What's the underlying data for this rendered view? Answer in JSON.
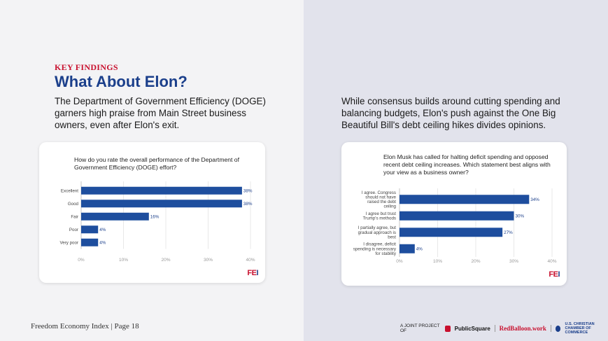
{
  "page": {
    "eyebrow": "KEY FINDINGS",
    "title": "What About Elon?",
    "left_text": "The Department of Government Efficiency (DOGE) garners high praise from Main Street business owners, even after Elon's exit.",
    "right_text": "While consensus builds around cutting spending and balancing budgets, Elon's push against the One Big Beautiful Bill's debt ceiling hikes divides opinions.",
    "logo_left": "FE",
    "logo_right": "I"
  },
  "footer": {
    "page_label": "Freedom Economy Index | Page 18",
    "joint_label": "A JOINT PROJECT OF",
    "brand1": "PublicSquare",
    "brand2": "RedBalloon.work",
    "brand3_line1": "U.S. CHRISTIAN",
    "brand3_line2": "CHAMBER OF COMMERCE"
  },
  "colors": {
    "bar": "#1e4e9e",
    "accent_red": "#c8102e",
    "title_blue": "#1b3f8b"
  },
  "chart_data": [
    {
      "type": "bar",
      "orientation": "horizontal",
      "title": "How do you rate the overall performance of the Department of Government Efficiency (DOGE) effort?",
      "categories": [
        "Excellent",
        "Good",
        "Fair",
        "Poor",
        "Very poor"
      ],
      "values": [
        38,
        38,
        16,
        4,
        4
      ],
      "value_labels": [
        "38%",
        "38%",
        "16%",
        "4%",
        "4%"
      ],
      "xticks": [
        "0%",
        "10%",
        "20%",
        "30%",
        "40%"
      ],
      "xlim": [
        0,
        40
      ],
      "grid": true
    },
    {
      "type": "bar",
      "orientation": "horizontal",
      "title": "Elon Musk has called for halting deficit spending and opposed recent debt ceiling increases. Which statement best aligns with your view as a business owner?",
      "categories": [
        [
          "I agree. Congress",
          "should not have",
          "raised the debt",
          "ceiling"
        ],
        [
          "I agree but trust",
          "Trump's methods"
        ],
        [
          "I partially agree, but",
          "gradual approach is",
          "best"
        ],
        [
          "I disagree, deficit",
          "spending is necessary",
          "for stability"
        ]
      ],
      "values": [
        34,
        30,
        27,
        4
      ],
      "value_labels": [
        "34%",
        "30%",
        "27%",
        "4%"
      ],
      "xticks": [
        "0%",
        "10%",
        "20%",
        "30%",
        "40%"
      ],
      "xlim": [
        0,
        40
      ],
      "grid": true
    }
  ]
}
